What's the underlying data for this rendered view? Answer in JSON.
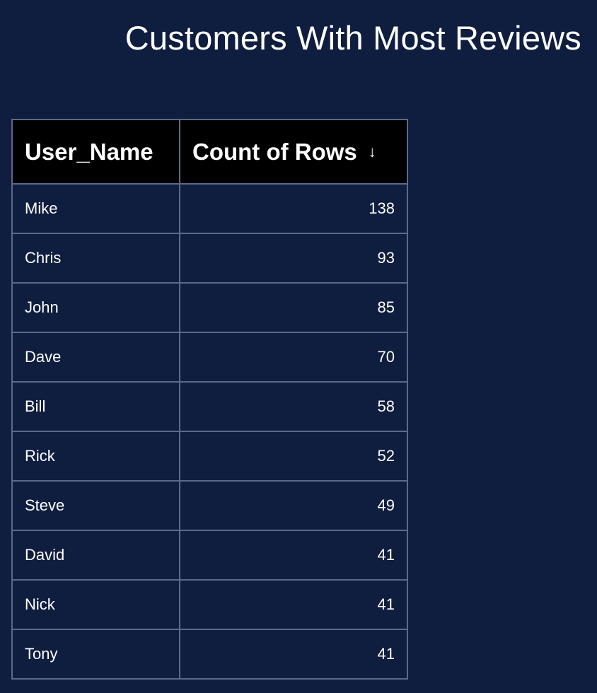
{
  "widget": {
    "title": "Customers With Most Reviews"
  },
  "table": {
    "columns": [
      {
        "label": "User_Name"
      },
      {
        "label": "Count of Rows",
        "sort_direction": "descending",
        "sort_icon": "arrow-down-icon",
        "sort_glyph": "↓"
      }
    ],
    "rows": [
      {
        "user_name": "Mike",
        "count": "138"
      },
      {
        "user_name": "Chris",
        "count": "93"
      },
      {
        "user_name": "John",
        "count": "85"
      },
      {
        "user_name": "Dave",
        "count": "70"
      },
      {
        "user_name": "Bill",
        "count": "58"
      },
      {
        "user_name": "Rick",
        "count": "52"
      },
      {
        "user_name": "Steve",
        "count": "49"
      },
      {
        "user_name": "David",
        "count": "41"
      },
      {
        "user_name": "Nick",
        "count": "41"
      },
      {
        "user_name": "Tony",
        "count": "41"
      }
    ]
  },
  "colors": {
    "background": "#0f1d3f",
    "header_background": "#000000",
    "grid_line": "#5b6a89",
    "text": "#ffffff"
  }
}
